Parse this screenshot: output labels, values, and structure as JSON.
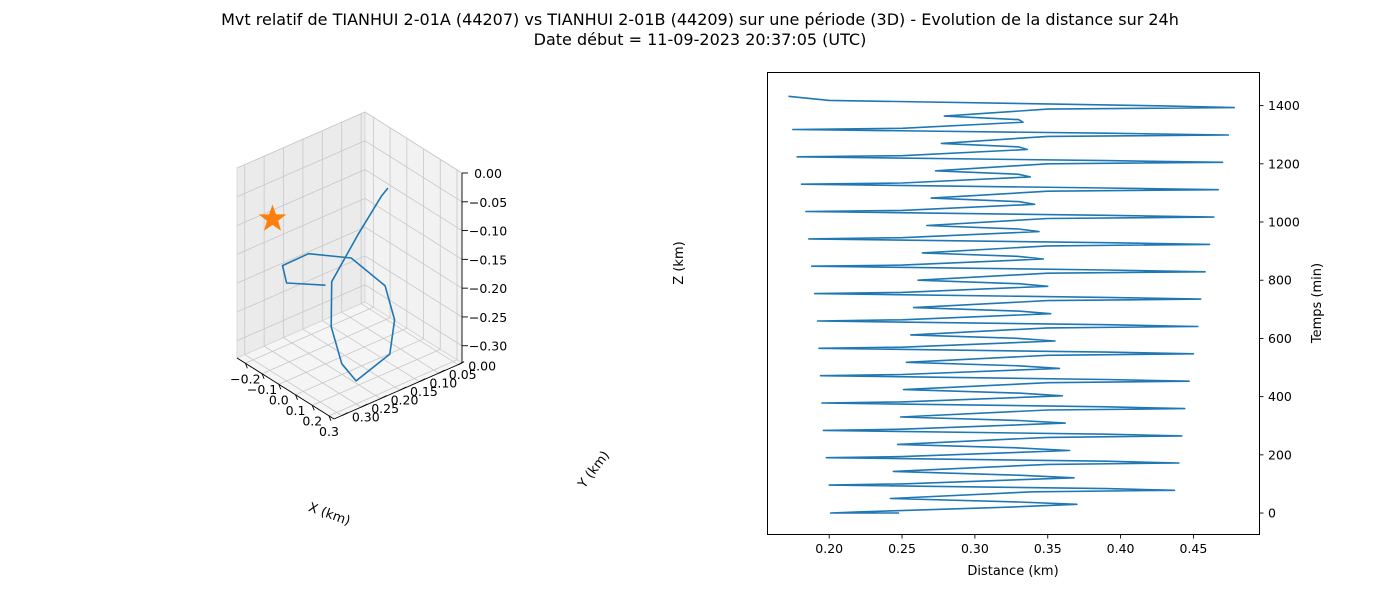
{
  "figure": {
    "title_line1": "Mvt relatif de TIANHUI 2-01A (44207) vs TIANHUI 2-01B (44209) sur une période (3D) - Evolution de la distance sur 24h",
    "title_line2": "Date début = 11-09-2023 20:37:05 (UTC)"
  },
  "chart_data": [
    {
      "type": "line3d",
      "xlabel": "X (km)",
      "ylabel": "Y (km)",
      "zlabel": "Z (km)",
      "xlim": [
        -0.25,
        0.33
      ],
      "ylim": [
        -0.01,
        0.32
      ],
      "zlim": [
        -0.33,
        0.0
      ],
      "xticks": [
        "−0.2",
        "−0.1",
        "0.0",
        "0.1",
        "0.2",
        "0.3"
      ],
      "yticks": [
        "0.00",
        "0.05",
        "0.10",
        "0.15",
        "0.20",
        "0.25",
        "0.30"
      ],
      "zticks": [
        "0.00",
        "−0.05",
        "−0.10",
        "−0.15",
        "−0.20",
        "−0.25",
        "−0.30"
      ],
      "grid": true,
      "series_color": "#1f77b4",
      "marker_color": "#ff7f0e",
      "marker_shape": "star",
      "marker_point": {
        "x": -0.2,
        "y": 0.25,
        "z": -0.1
      },
      "trajectory": [
        {
          "x": 0.14,
          "y": 0.26,
          "z": -0.15
        },
        {
          "x": 0.0,
          "y": 0.3,
          "z": -0.16
        },
        {
          "x": -0.14,
          "y": 0.25,
          "z": -0.17
        },
        {
          "x": -0.24,
          "y": 0.14,
          "z": -0.2
        },
        {
          "x": -0.24,
          "y": 0.03,
          "z": -0.24
        },
        {
          "x": -0.13,
          "y": -0.01,
          "z": -0.28
        },
        {
          "x": 0.02,
          "y": 0.03,
          "z": -0.3
        },
        {
          "x": 0.2,
          "y": 0.12,
          "z": -0.3
        },
        {
          "x": 0.3,
          "y": 0.25,
          "z": -0.29
        },
        {
          "x": 0.33,
          "y": 0.3,
          "z": -0.24
        },
        {
          "x": 0.29,
          "y": 0.31,
          "z": -0.18
        },
        {
          "x": 0.2,
          "y": 0.27,
          "z": -0.13
        },
        {
          "x": 0.06,
          "y": 0.14,
          "z": -0.11
        },
        {
          "x": -0.06,
          "y": 0.03,
          "z": -0.1
        },
        {
          "x": -0.09,
          "y": 0.0,
          "z": -0.1
        }
      ]
    },
    {
      "type": "line",
      "xlabel": "Distance (km)",
      "ylabel": "Temps (min)",
      "xlim": [
        0.158,
        0.495
      ],
      "ylim": [
        -72,
        1512
      ],
      "xticks": [
        0.2,
        0.25,
        0.3,
        0.35,
        0.4,
        0.45
      ],
      "yticks": [
        0,
        200,
        400,
        600,
        800,
        1000,
        1200,
        1400
      ],
      "xtick_labels": [
        "0.20",
        "0.25",
        "0.30",
        "0.35",
        "0.40",
        "0.45"
      ],
      "ytick_labels": [
        "0",
        "200",
        "400",
        "600",
        "800",
        "1000",
        "1200",
        "1400"
      ],
      "grid": false,
      "series_color": "#1f77b4",
      "series": [
        {
          "points": [
            [
              0.248,
              0
            ],
            [
              0.201,
              0
            ],
            [
              0.22,
              4
            ],
            [
              0.322,
              20
            ],
            [
              0.37,
              30
            ],
            [
              0.33,
              38
            ],
            [
              0.242,
              50
            ],
            [
              0.34,
              73
            ],
            [
              0.437,
              78
            ],
            [
              0.39,
              84
            ],
            [
              0.2,
              96
            ],
            [
              0.25,
              100
            ],
            [
              0.368,
              121
            ],
            [
              0.33,
              130
            ],
            [
              0.244,
              143
            ],
            [
              0.35,
              167
            ],
            [
              0.44,
              172
            ],
            [
              0.39,
              178
            ],
            [
              0.198,
              190
            ],
            [
              0.25,
              194
            ],
            [
              0.365,
              215
            ],
            [
              0.33,
              224
            ],
            [
              0.247,
              236
            ],
            [
              0.35,
              260
            ],
            [
              0.442,
              265
            ],
            [
              0.39,
              271
            ],
            [
              0.196,
              284
            ],
            [
              0.25,
              288
            ],
            [
              0.362,
              309
            ],
            [
              0.33,
              318
            ],
            [
              0.249,
              330
            ],
            [
              0.35,
              354
            ],
            [
              0.444,
              359
            ],
            [
              0.39,
              365
            ],
            [
              0.195,
              378
            ],
            [
              0.25,
              382
            ],
            [
              0.36,
              403
            ],
            [
              0.33,
              412
            ],
            [
              0.251,
              424
            ],
            [
              0.35,
              448
            ],
            [
              0.447,
              453
            ],
            [
              0.39,
              459
            ],
            [
              0.194,
              472
            ],
            [
              0.25,
              476
            ],
            [
              0.358,
              497
            ],
            [
              0.33,
              506
            ],
            [
              0.253,
              518
            ],
            [
              0.35,
              542
            ],
            [
              0.45,
              547
            ],
            [
              0.39,
              553
            ],
            [
              0.193,
              566
            ],
            [
              0.25,
              570
            ],
            [
              0.355,
              591
            ],
            [
              0.33,
              600
            ],
            [
              0.256,
              612
            ],
            [
              0.35,
              636
            ],
            [
              0.453,
              641
            ],
            [
              0.39,
              647
            ],
            [
              0.192,
              660
            ],
            [
              0.25,
              664
            ],
            [
              0.352,
              685
            ],
            [
              0.33,
              694
            ],
            [
              0.258,
              706
            ],
            [
              0.35,
              730
            ],
            [
              0.455,
              735
            ],
            [
              0.39,
              741
            ],
            [
              0.19,
              754
            ],
            [
              0.25,
              758
            ],
            [
              0.35,
              779
            ],
            [
              0.33,
              788
            ],
            [
              0.261,
              800
            ],
            [
              0.35,
              824
            ],
            [
              0.458,
              829
            ],
            [
              0.39,
              835
            ],
            [
              0.188,
              848
            ],
            [
              0.25,
              852
            ],
            [
              0.347,
              873
            ],
            [
              0.33,
              882
            ],
            [
              0.264,
              894
            ],
            [
              0.35,
              918
            ],
            [
              0.461,
              923
            ],
            [
              0.39,
              929
            ],
            [
              0.186,
              942
            ],
            [
              0.25,
              946
            ],
            [
              0.344,
              967
            ],
            [
              0.33,
              976
            ],
            [
              0.267,
              988
            ],
            [
              0.35,
              1012
            ],
            [
              0.464,
              1017
            ],
            [
              0.39,
              1023
            ],
            [
              0.184,
              1036
            ],
            [
              0.25,
              1040
            ],
            [
              0.341,
              1061
            ],
            [
              0.33,
              1070
            ],
            [
              0.27,
              1082
            ],
            [
              0.35,
              1106
            ],
            [
              0.467,
              1111
            ],
            [
              0.39,
              1117
            ],
            [
              0.181,
              1130
            ],
            [
              0.25,
              1134
            ],
            [
              0.338,
              1155
            ],
            [
              0.33,
              1164
            ],
            [
              0.273,
              1176
            ],
            [
              0.35,
              1200
            ],
            [
              0.47,
              1205
            ],
            [
              0.39,
              1211
            ],
            [
              0.178,
              1224
            ],
            [
              0.25,
              1228
            ],
            [
              0.336,
              1249
            ],
            [
              0.33,
              1258
            ],
            [
              0.277,
              1270
            ],
            [
              0.35,
              1294
            ],
            [
              0.474,
              1299
            ],
            [
              0.39,
              1305
            ],
            [
              0.175,
              1318
            ],
            [
              0.25,
              1322
            ],
            [
              0.333,
              1343
            ],
            [
              0.33,
              1352
            ],
            [
              0.279,
              1364
            ],
            [
              0.35,
              1388
            ],
            [
              0.478,
              1393
            ],
            [
              0.43,
              1399
            ],
            [
              0.2,
              1418
            ],
            [
              0.172,
              1432
            ]
          ]
        }
      ]
    }
  ]
}
